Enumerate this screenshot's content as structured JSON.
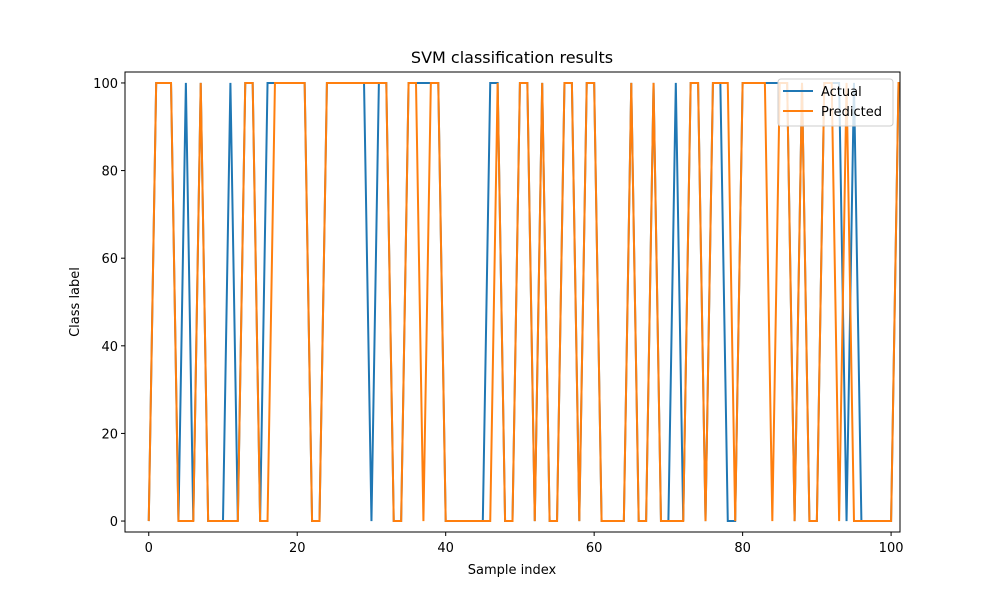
{
  "chart_data": {
    "type": "line",
    "title": "SVM classification results",
    "xlabel": "Sample index",
    "ylabel": "Class label",
    "xlim": [
      -3.2,
      101.2
    ],
    "ylim": [
      -2.5,
      102.5
    ],
    "xticks": [
      0,
      20,
      40,
      60,
      80,
      100
    ],
    "yticks": [
      0,
      20,
      40,
      60,
      80,
      100
    ],
    "grid": false,
    "legend_position": "top-right",
    "series": [
      {
        "name": "Actual",
        "color": "#1f77b4",
        "values": [
          0,
          100,
          100,
          100,
          0,
          100,
          0,
          100,
          0,
          0,
          0,
          100,
          0,
          100,
          100,
          0,
          100,
          100,
          100,
          100,
          100,
          100,
          0,
          0,
          100,
          100,
          100,
          100,
          100,
          100,
          0,
          100,
          100,
          0,
          0,
          100,
          100,
          100,
          100,
          100,
          0,
          0,
          0,
          0,
          0,
          0,
          100,
          100,
          0,
          0,
          100,
          100,
          0,
          100,
          0,
          0,
          100,
          100,
          0,
          100,
          100,
          0,
          0,
          0,
          0,
          100,
          0,
          0,
          100,
          0,
          0,
          100,
          0,
          100,
          100,
          0,
          100,
          100,
          0,
          0,
          100,
          100,
          100,
          100,
          100,
          100,
          100,
          0,
          100,
          0,
          0,
          100,
          100,
          100,
          0,
          100,
          0,
          0,
          0,
          0,
          0,
          100,
          100
        ]
      },
      {
        "name": "Predicted",
        "color": "#ff7f0e",
        "values": [
          0,
          100,
          100,
          100,
          0,
          0,
          0,
          100,
          0,
          0,
          0,
          0,
          0,
          100,
          100,
          0,
          0,
          100,
          100,
          100,
          100,
          100,
          0,
          0,
          100,
          100,
          100,
          100,
          100,
          100,
          100,
          100,
          100,
          0,
          0,
          100,
          100,
          0,
          100,
          100,
          0,
          0,
          0,
          0,
          0,
          0,
          0,
          100,
          0,
          0,
          100,
          100,
          0,
          100,
          0,
          0,
          100,
          100,
          0,
          100,
          100,
          0,
          0,
          0,
          0,
          100,
          0,
          0,
          100,
          0,
          0,
          0,
          0,
          100,
          100,
          0,
          100,
          100,
          100,
          0,
          100,
          100,
          100,
          100,
          0,
          100,
          100,
          0,
          100,
          0,
          0,
          100,
          100,
          0,
          100,
          0,
          0,
          0,
          0,
          0,
          0,
          100,
          100
        ]
      }
    ]
  }
}
